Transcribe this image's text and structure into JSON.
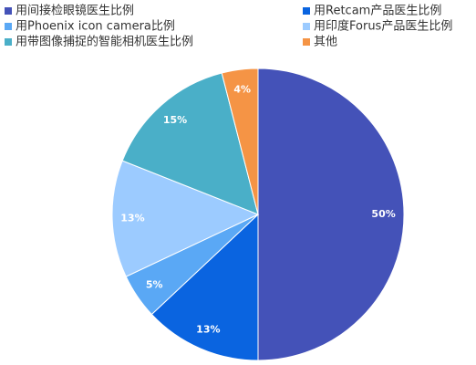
{
  "chart_data": {
    "type": "pie",
    "categories": [
      "用间接检眼镜医生比例",
      "用Retcam产品医生比例",
      "用Phoenix icon camera比例",
      "用印度Forus产品医生比例",
      "用带图像捕捉的智能相机医生比例",
      "其他"
    ],
    "values": [
      50,
      13,
      5,
      13,
      15,
      4
    ],
    "value_labels": [
      "50%",
      "13%",
      "5%",
      "13%",
      "15%",
      "4%"
    ],
    "colors": [
      "#4452b8",
      "#0a64e0",
      "#5aa8f5",
      "#9ccbff",
      "#4aafc8",
      "#f59445"
    ],
    "legend": "top"
  }
}
